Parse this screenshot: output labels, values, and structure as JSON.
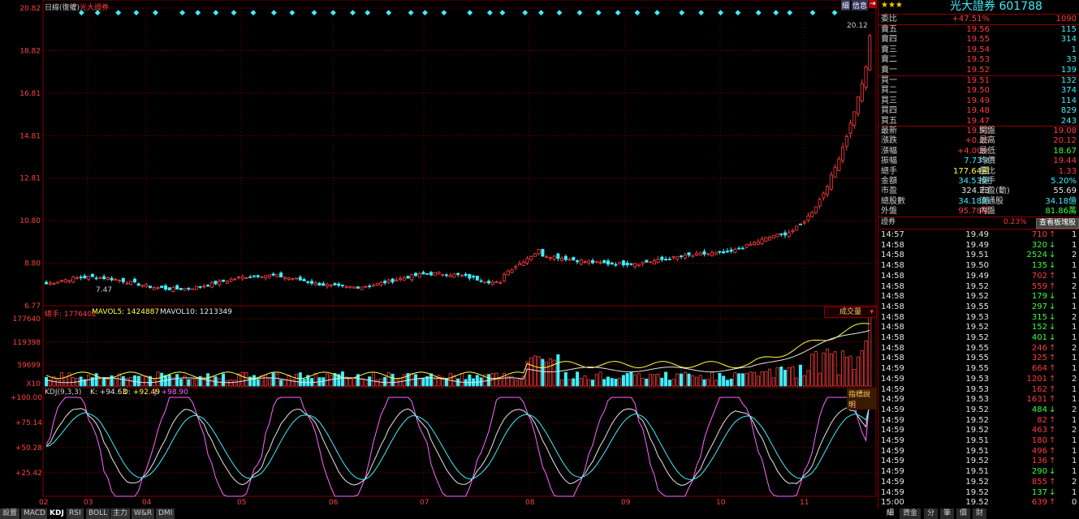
{
  "chart_header": {
    "mode": "日線(復權)",
    "name": "光大證券"
  },
  "price_axis": [
    "20.82",
    "18.82",
    "16.81",
    "14.81",
    "12.81",
    "10.80",
    "8.80",
    "6.77"
  ],
  "price_markers": {
    "high": "20.12",
    "low": "7.47"
  },
  "volume_header": {
    "total": "總手: 1776402",
    "mavol5": "MAVOL5: 1424887",
    "mavol10": "MAVOL10: 1213349",
    "dropdown": "成交量"
  },
  "volume_axis": [
    "177640",
    "119398",
    "59699",
    "X10"
  ],
  "kdj_header": {
    "name": "KDJ(9,3,3)",
    "k": "K: +94.63",
    "d": "D: +92.49",
    "j": "J: +98.90",
    "help": "指標說明"
  },
  "kdj_axis": [
    "+100.00",
    "+75.14",
    "+50.28",
    "+25.42"
  ],
  "x_axis": [
    "02",
    "03",
    "04",
    "05",
    "06",
    "07",
    "08",
    "09",
    "10",
    "11"
  ],
  "bottom_tabs": [
    "設置",
    "MACD",
    "KDJ",
    "RSI",
    "BOLL",
    "主力",
    "W&R",
    "DMI"
  ],
  "colors": {
    "up": "#ff3c3c",
    "down": "#3cf0ff",
    "k": "#e6e6e6",
    "d": "#ffff3c",
    "j": "#ff64ff",
    "grid": "#800000"
  },
  "quote": {
    "title": "光大證券 601788",
    "stars": "★★★",
    "top_buttons": [
      "細",
      "信息",
      "⇥"
    ],
    "weibi": {
      "label": "委比",
      "pct": "+47.51%",
      "diff": "1090"
    },
    "asks": [
      {
        "label": "賣五",
        "price": "19.56",
        "vol": "115"
      },
      {
        "label": "賣四",
        "price": "19.55",
        "vol": "314"
      },
      {
        "label": "賣三",
        "price": "19.54",
        "vol": "1"
      },
      {
        "label": "賣二",
        "price": "19.53",
        "vol": "33"
      },
      {
        "label": "賣一",
        "price": "19.52",
        "vol": "139"
      }
    ],
    "bids": [
      {
        "label": "買一",
        "price": "19.51",
        "vol": "132"
      },
      {
        "label": "買二",
        "price": "19.50",
        "vol": "374"
      },
      {
        "label": "買三",
        "price": "19.49",
        "vol": "114"
      },
      {
        "label": "買四",
        "price": "19.48",
        "vol": "829"
      },
      {
        "label": "買五",
        "price": "19.47",
        "vol": "243"
      }
    ],
    "stats": [
      {
        "l1": "最新",
        "v1": "19.52",
        "l2": "開盤",
        "v2": "19.08"
      },
      {
        "l1": "漲跌",
        "v1": "+0.75",
        "l2": "最高",
        "v2": "20.12"
      },
      {
        "l1": "漲幅",
        "v1": "+4.00%",
        "l2": "最低",
        "v2": "18.67"
      },
      {
        "l1": "振幅",
        "v1": "7.73%",
        "l2": "均價",
        "v2": "19.44"
      },
      {
        "l1": "總手",
        "v1": "177.64萬",
        "l2": "量比",
        "v2": "1.33"
      },
      {
        "l1": "金額",
        "v1": "34.53億",
        "l2": "換手",
        "v2": "5.20%"
      },
      {
        "l1": "市盈",
        "v1": "324.23",
        "l2": "市盈(動)",
        "v2": "55.69"
      },
      {
        "l1": "總股數",
        "v1": "34.18億",
        "l2": "流通股",
        "v2": "34.18億"
      },
      {
        "l1": "外盤",
        "v1": "95.78萬",
        "l2": "內盤",
        "v2": "81.86萬"
      }
    ],
    "sector": {
      "label": "證券",
      "pct": "0.23%",
      "button": "查看板塊股"
    },
    "ticks": [
      {
        "time": "14:57",
        "price": "19.49",
        "vol": "710",
        "dir": "up",
        "n": "1"
      },
      {
        "time": "14:58",
        "price": "19.49",
        "vol": "320",
        "dir": "down",
        "n": "1"
      },
      {
        "time": "14:58",
        "price": "19.51",
        "vol": "2524",
        "dir": "down",
        "n": "2"
      },
      {
        "time": "14:58",
        "price": "19.50",
        "vol": "135",
        "dir": "down",
        "n": "1"
      },
      {
        "time": "14:58",
        "price": "19.49",
        "vol": "702",
        "dir": "up",
        "n": "1"
      },
      {
        "time": "14:58",
        "price": "19.52",
        "vol": "559",
        "dir": "up",
        "n": "2"
      },
      {
        "time": "14:58",
        "price": "19.52",
        "vol": "179",
        "dir": "down",
        "n": "1"
      },
      {
        "time": "14:58",
        "price": "19.55",
        "vol": "297",
        "dir": "down",
        "n": "1"
      },
      {
        "time": "14:58",
        "price": "19.53",
        "vol": "315",
        "dir": "down",
        "n": "2"
      },
      {
        "time": "14:58",
        "price": "19.52",
        "vol": "152",
        "dir": "down",
        "n": "1"
      },
      {
        "time": "14:58",
        "price": "19.52",
        "vol": "401",
        "dir": "down",
        "n": "1"
      },
      {
        "time": "14:58",
        "price": "19.55",
        "vol": "246",
        "dir": "up",
        "n": "2"
      },
      {
        "time": "14:58",
        "price": "19.55",
        "vol": "325",
        "dir": "up",
        "n": "1"
      },
      {
        "time": "14:59",
        "price": "19.55",
        "vol": "664",
        "dir": "up",
        "n": "1"
      },
      {
        "time": "14:59",
        "price": "19.53",
        "vol": "1201",
        "dir": "up",
        "n": "2"
      },
      {
        "time": "14:59",
        "price": "19.53",
        "vol": "162",
        "dir": "up",
        "n": "1"
      },
      {
        "time": "14:59",
        "price": "19.53",
        "vol": "1631",
        "dir": "up",
        "n": "1"
      },
      {
        "time": "14:59",
        "price": "19.52",
        "vol": "484",
        "dir": "down",
        "n": "2"
      },
      {
        "time": "14:59",
        "price": "19.52",
        "vol": "82",
        "dir": "up",
        "n": "1"
      },
      {
        "time": "14:59",
        "price": "19.52",
        "vol": "463",
        "dir": "up",
        "n": "2"
      },
      {
        "time": "14:59",
        "price": "19.51",
        "vol": "180",
        "dir": "up",
        "n": "1"
      },
      {
        "time": "14:59",
        "price": "19.51",
        "vol": "496",
        "dir": "up",
        "n": "1"
      },
      {
        "time": "14:59",
        "price": "19.52",
        "vol": "136",
        "dir": "up",
        "n": "1"
      },
      {
        "time": "14:59",
        "price": "19.51",
        "vol": "290",
        "dir": "down",
        "n": "1"
      },
      {
        "time": "14:59",
        "price": "19.52",
        "vol": "855",
        "dir": "up",
        "n": "2"
      },
      {
        "time": "14:59",
        "price": "19.52",
        "vol": "137",
        "dir": "down",
        "n": "1"
      },
      {
        "time": "15:00",
        "price": "19.52",
        "vol": "639",
        "dir": "up",
        "n": "0"
      }
    ],
    "right_tabs": [
      "細",
      "資金",
      "分",
      "筆",
      "價",
      "財"
    ]
  },
  "chart_data": {
    "type": "candlestick",
    "ylim": [
      6.77,
      20.82
    ],
    "close_start": 7.9,
    "close_end": 19.52,
    "high": 20.12,
    "low": 7.47,
    "volume_max": 177640,
    "kdj_last": {
      "k": 94.63,
      "d": 92.49,
      "j": 98.9
    }
  }
}
